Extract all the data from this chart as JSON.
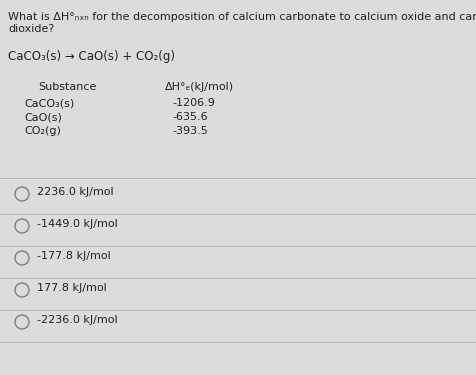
{
  "bg_color": "#dddcdc",
  "title_line1": "What is ΔH°ₙₓₙ for the decomposition of calcium carbonate to calcium oxide and carbon",
  "title_line2": "dioxide?",
  "reaction": "CaCO₃(s) → CaO(s) + CO₂(g)",
  "table_header_sub": "Substance",
  "table_header_val": "ΔH°ₑ(kJ/mol)",
  "table_rows": [
    [
      "CaCO₃(s)",
      "-1206.9"
    ],
    [
      "CaO(s)",
      "-635.6"
    ],
    [
      "CO₂(g)",
      "-393.5"
    ]
  ],
  "choices": [
    "2236.0 kJ/mol",
    "-1449.0 kJ/mol",
    "-177.8 kJ/mol",
    "177.8 kJ/mol",
    "-2236.0 kJ/mol"
  ],
  "text_color": "#222222",
  "divider_color": "#bbbbbb",
  "font_size_title": 8.0,
  "font_size_reaction": 8.5,
  "font_size_table": 8.0,
  "font_size_choices": 8.0
}
